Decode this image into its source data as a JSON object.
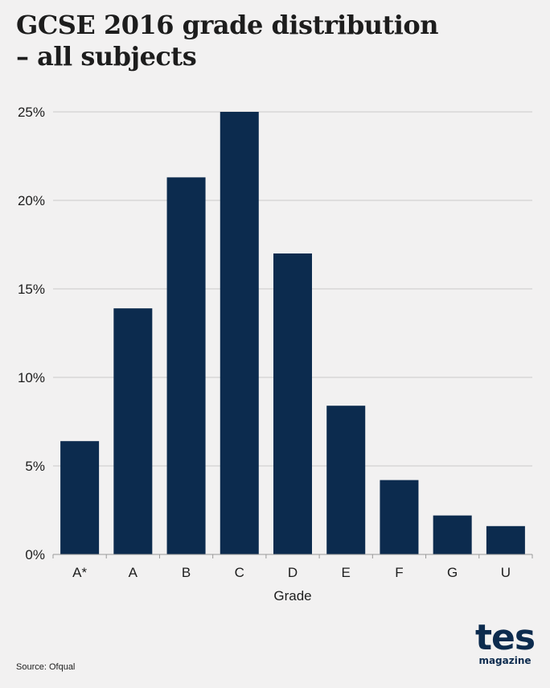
{
  "title_line1": "GCSE 2016 grade distribution",
  "title_line2": "– all subjects",
  "source": "Source: Ofqual",
  "logo": {
    "main": "tes",
    "sub": "magazine"
  },
  "colors": {
    "bar": "#0c2b4e",
    "grid": "#c9c9c9",
    "background": "#f2f1f1",
    "text": "#1d1d1d"
  },
  "chart_data": {
    "type": "bar",
    "title": "GCSE 2016 grade distribution – all subjects",
    "xlabel": "Grade",
    "ylabel": "",
    "categories": [
      "A*",
      "A",
      "B",
      "C",
      "D",
      "E",
      "F",
      "G",
      "U"
    ],
    "values": [
      6.4,
      13.9,
      21.3,
      25.0,
      17.0,
      8.4,
      4.2,
      2.2,
      1.6
    ],
    "ylim": [
      0,
      25
    ],
    "yticks": [
      0,
      5,
      10,
      15,
      20,
      25
    ],
    "ytick_labels": [
      "0%",
      "5%",
      "10%",
      "15%",
      "20%",
      "25%"
    ],
    "grid": true,
    "legend": "none"
  }
}
